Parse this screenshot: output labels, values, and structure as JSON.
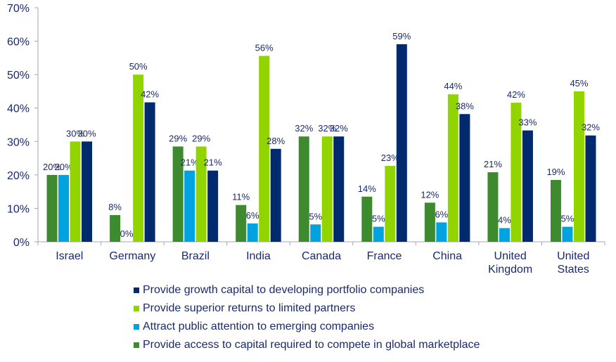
{
  "chart_data": {
    "type": "bar",
    "title": "",
    "xlabel": "",
    "ylabel": "",
    "ylim": [
      0,
      70
    ],
    "yticks": [
      "0%",
      "10%",
      "20%",
      "30%",
      "40%",
      "50%",
      "60%",
      "70%"
    ],
    "grid": false,
    "legend_position": "bottom",
    "categories": [
      "Israel",
      "Germany",
      "Brazil",
      "India",
      "Canada",
      "France",
      "China",
      "United Kingdom",
      "United States"
    ],
    "category_lines": [
      [
        "Israel"
      ],
      [
        "Germany"
      ],
      [
        "Brazil"
      ],
      [
        "India"
      ],
      [
        "Canada"
      ],
      [
        "France"
      ],
      [
        "China"
      ],
      [
        "United",
        "Kingdom"
      ],
      [
        "United",
        "States"
      ]
    ],
    "series": [
      {
        "name": "Provide access to capital required to compete in global marketplace",
        "color": "#3d8a2f",
        "values": [
          20,
          8,
          29,
          11,
          32,
          14,
          12,
          21,
          19
        ]
      },
      {
        "name": "Attract public attention to emerging companies",
        "color": "#00a3e0",
        "values": [
          20,
          0,
          21,
          6,
          5,
          5,
          6,
          4,
          5
        ]
      },
      {
        "name": "Provide superior returns to limited partners",
        "color": "#92d400",
        "values": [
          30,
          50,
          29,
          56,
          32,
          23,
          44,
          42,
          45
        ]
      },
      {
        "name": "Provide growth capital to developing portfolio companies",
        "color": "#002a6e",
        "values": [
          30,
          42,
          21,
          28,
          32,
          59,
          38,
          33,
          32
        ]
      }
    ],
    "display_values": [
      [
        20,
        8,
        28.5,
        11,
        31.5,
        13.5,
        11.7,
        20.8,
        18.5
      ],
      [
        20,
        0,
        21.3,
        5.5,
        5.2,
        4.5,
        5.8,
        4.1,
        4.5
      ],
      [
        30,
        50,
        28.5,
        55.6,
        31.5,
        22.7,
        44.1,
        41.6,
        45
      ],
      [
        30,
        41.7,
        21.3,
        27.8,
        31.5,
        59.1,
        38.2,
        33.3,
        31.8
      ]
    ]
  },
  "legend": [
    {
      "label": "Provide growth capital to developing portfolio companies",
      "color": "#002a6e"
    },
    {
      "label": "Provide superior returns to limited partners",
      "color": "#92d400"
    },
    {
      "label": "Attract public attention to emerging companies",
      "color": "#00a3e0"
    },
    {
      "label": "Provide access to capital required to compete in global marketplace",
      "color": "#3d8a2f"
    }
  ]
}
